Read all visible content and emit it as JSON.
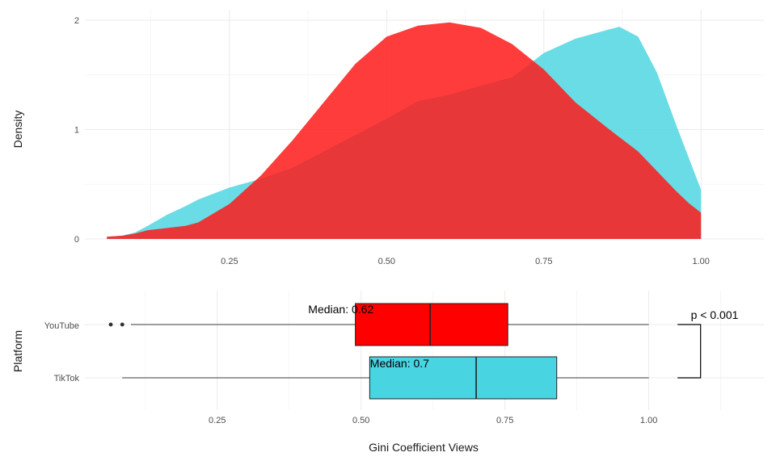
{
  "colors": {
    "youtube": "#ff0000",
    "tiktok": "#48d4e0",
    "youtube_fill": "#ff1a1a",
    "tiktok_fill": "#48d4e0"
  },
  "chart_data": [
    {
      "type": "area",
      "ylabel": "Density",
      "xlim": [
        0.02,
        1.1
      ],
      "ylim": [
        0,
        2.05
      ],
      "x_ticks": [
        0.25,
        0.5,
        0.75,
        1.0
      ],
      "x_tick_labels": [
        "0.25",
        "0.50",
        "0.75",
        "1.00"
      ],
      "y_ticks": [
        0,
        1,
        2
      ],
      "y_tick_labels": [
        "0",
        "1",
        "2"
      ],
      "grid": true,
      "series": [
        {
          "key": "tiktok",
          "x": [
            0.055,
            0.08,
            0.1,
            0.12,
            0.15,
            0.18,
            0.2,
            0.25,
            0.3,
            0.35,
            0.4,
            0.45,
            0.5,
            0.55,
            0.6,
            0.65,
            0.7,
            0.75,
            0.8,
            0.85,
            0.87,
            0.9,
            0.93,
            0.96,
            0.98,
            1.0
          ],
          "y": [
            0.02,
            0.03,
            0.06,
            0.12,
            0.22,
            0.3,
            0.36,
            0.47,
            0.55,
            0.65,
            0.8,
            0.95,
            1.1,
            1.26,
            1.32,
            1.4,
            1.48,
            1.7,
            1.83,
            1.91,
            1.94,
            1.85,
            1.52,
            1.05,
            0.75,
            0.45
          ]
        },
        {
          "key": "youtube",
          "x": [
            0.055,
            0.08,
            0.1,
            0.12,
            0.15,
            0.18,
            0.2,
            0.25,
            0.3,
            0.35,
            0.4,
            0.45,
            0.5,
            0.55,
            0.6,
            0.65,
            0.7,
            0.75,
            0.8,
            0.85,
            0.9,
            0.93,
            0.96,
            0.98,
            1.0
          ],
          "y": [
            0.02,
            0.03,
            0.05,
            0.08,
            0.1,
            0.12,
            0.15,
            0.32,
            0.58,
            0.9,
            1.25,
            1.6,
            1.85,
            1.95,
            1.98,
            1.93,
            1.78,
            1.55,
            1.25,
            1.02,
            0.8,
            0.62,
            0.44,
            0.33,
            0.24
          ]
        }
      ]
    },
    {
      "type": "box",
      "ylabel": "Platform",
      "xlabel": "Gini Coefficient Views",
      "xlim": [
        0.02,
        1.2
      ],
      "x_ticks": [
        0.25,
        0.5,
        0.75,
        1.0
      ],
      "x_tick_labels": [
        "0.25",
        "0.50",
        "0.75",
        "1.00"
      ],
      "categories": [
        "YouTube",
        "TikTok"
      ],
      "boxes": [
        {
          "key": "youtube",
          "label": "YouTube",
          "whisker_low": 0.1,
          "q1": 0.49,
          "median": 0.62,
          "q3": 0.755,
          "whisker_high": 1.0,
          "outliers": [
            0.065,
            0.085
          ],
          "median_label": "Median: 0.62",
          "median_label_x": 0.465
        },
        {
          "key": "tiktok",
          "label": "TikTok",
          "whisker_low": 0.085,
          "q1": 0.515,
          "median": 0.7,
          "q3": 0.84,
          "whisker_high": 1.0,
          "outliers": [],
          "median_label": "Median: 0.7",
          "median_label_x": 0.567
        }
      ],
      "significance_label": "p < 0.001"
    }
  ]
}
